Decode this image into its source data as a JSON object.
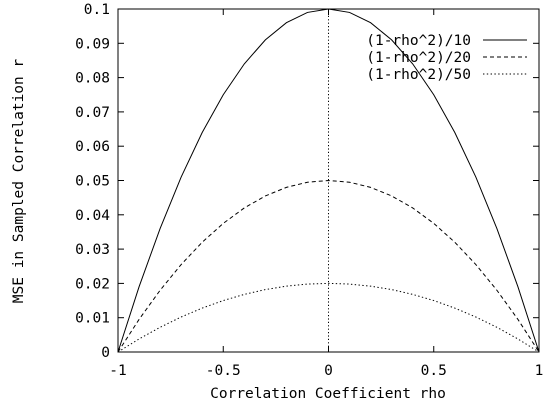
{
  "chart_data": {
    "type": "line",
    "title": "",
    "xlabel": "Correlation Coefficient rho",
    "ylabel": "MSE in Sampled Correlation r",
    "xlim": [
      -1,
      1
    ],
    "ylim": [
      0,
      0.1
    ],
    "x_ticks": [
      -1,
      -0.5,
      0,
      0.5,
      1
    ],
    "x_tick_labels": [
      "-1",
      "-0.5",
      "0",
      "0.5",
      "1"
    ],
    "y_ticks": [
      0,
      0.01,
      0.02,
      0.03,
      0.04,
      0.05,
      0.06,
      0.07,
      0.08,
      0.09,
      0.1
    ],
    "y_tick_labels": [
      "0",
      "0.01",
      "0.02",
      "0.03",
      "0.04",
      "0.05",
      "0.06",
      "0.07",
      "0.08",
      "0.09",
      "0.1"
    ],
    "grid": false,
    "legend_position": "top-right",
    "x": [
      -1,
      -0.9,
      -0.8,
      -0.7,
      -0.6,
      -0.5,
      -0.4,
      -0.3,
      -0.2,
      -0.1,
      0,
      0.1,
      0.2,
      0.3,
      0.4,
      0.5,
      0.6,
      0.7,
      0.8,
      0.9,
      1
    ],
    "series": [
      {
        "name": "(1-rho^2)/10",
        "dash": "solid",
        "values": [
          0,
          0.019,
          0.036,
          0.051,
          0.064,
          0.075,
          0.084,
          0.091,
          0.096,
          0.099,
          0.1,
          0.099,
          0.096,
          0.091,
          0.084,
          0.075,
          0.064,
          0.051,
          0.036,
          0.019,
          0
        ]
      },
      {
        "name": "(1-rho^2)/20",
        "dash": "dashed",
        "values": [
          0,
          0.0095,
          0.018,
          0.0255,
          0.032,
          0.0375,
          0.042,
          0.0455,
          0.048,
          0.0495,
          0.05,
          0.0495,
          0.048,
          0.0455,
          0.042,
          0.0375,
          0.032,
          0.0255,
          0.018,
          0.0095,
          0
        ]
      },
      {
        "name": "(1-rho^2)/50",
        "dash": "dotted",
        "values": [
          0,
          0.0038,
          0.0072,
          0.0102,
          0.0128,
          0.015,
          0.0168,
          0.0182,
          0.0192,
          0.0198,
          0.02,
          0.0198,
          0.0192,
          0.0182,
          0.0168,
          0.015,
          0.0128,
          0.0102,
          0.0072,
          0.0038,
          0
        ]
      }
    ],
    "reference_line": {
      "x": 0,
      "style": "dotted"
    }
  }
}
